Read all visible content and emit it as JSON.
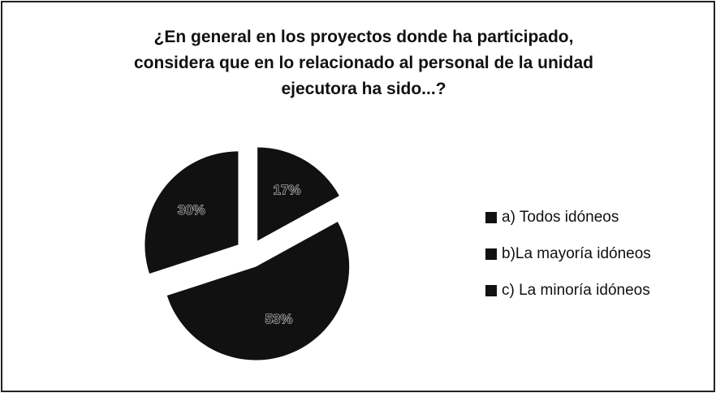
{
  "chart_data": {
    "type": "pie",
    "title": [
      "¿En general en los proyectos donde ha participado,",
      "considera que en lo relacionado al personal de la unidad",
      "ejecutora ha sido...?"
    ],
    "categories": [
      "a) Todos idóneos",
      "b)La mayoría idóneos",
      "c) La minoría idóneos"
    ],
    "values": [
      17,
      53,
      30
    ],
    "value_labels": [
      "17%",
      "53%",
      "30%"
    ],
    "colors": [
      "#111111",
      "#111111",
      "#111111"
    ],
    "legend": "right"
  }
}
